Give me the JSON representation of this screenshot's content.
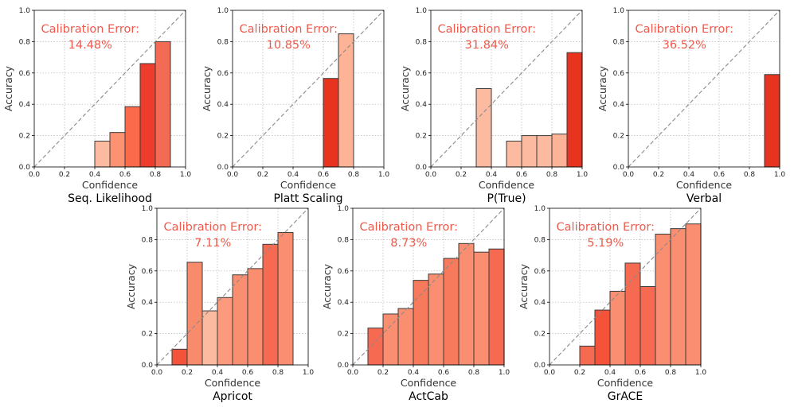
{
  "chart_data": [
    {
      "type": "bar",
      "name": "Seq. Likelihood",
      "xlabel": "Confidence",
      "ylabel": "Accuracy",
      "xlim": [
        0,
        1
      ],
      "ylim": [
        0,
        1
      ],
      "xticks": [
        "0.0",
        "0.2",
        "0.4",
        "0.6",
        "0.8",
        "1.0"
      ],
      "yticks": [
        "0.0",
        "0.2",
        "0.4",
        "0.6",
        "0.8",
        "1.0"
      ],
      "grid": true,
      "diagonal": true,
      "annotation_label": "Calibration Error:",
      "annotation_value": "14.48%",
      "bars": [
        {
          "x0": 0.4,
          "x1": 0.5,
          "value": 0.165,
          "color": "#fcbba1"
        },
        {
          "x0": 0.5,
          "x1": 0.6,
          "value": 0.22,
          "color": "#fc9272"
        },
        {
          "x0": 0.6,
          "x1": 0.7,
          "value": 0.385,
          "color": "#fb6a4a"
        },
        {
          "x0": 0.7,
          "x1": 0.8,
          "value": 0.66,
          "color": "#ef3b2c"
        },
        {
          "x0": 0.8,
          "x1": 0.9,
          "value": 0.8,
          "color": "#f36b55"
        }
      ]
    },
    {
      "type": "bar",
      "name": "Platt Scaling",
      "xlabel": "Confidence",
      "ylabel": "Accuracy",
      "xlim": [
        0,
        1
      ],
      "ylim": [
        0,
        1
      ],
      "xticks": [
        "0.0",
        "0.2",
        "0.4",
        "0.6",
        "0.8",
        "1.0"
      ],
      "yticks": [
        "0.0",
        "0.2",
        "0.4",
        "0.6",
        "0.8",
        "1.0"
      ],
      "grid": true,
      "diagonal": true,
      "annotation_label": "Calibration Error:",
      "annotation_value": "10.85%",
      "bars": [
        {
          "x0": 0.6,
          "x1": 0.7,
          "value": 0.565,
          "color": "#e8331f"
        },
        {
          "x0": 0.7,
          "x1": 0.8,
          "value": 0.85,
          "color": "#fcb396"
        }
      ]
    },
    {
      "type": "bar",
      "name": "P(True)",
      "xlabel": "Confidence",
      "ylabel": "Accuracy",
      "xlim": [
        0,
        1
      ],
      "ylim": [
        0,
        1
      ],
      "xticks": [
        "0.0",
        "0.2",
        "0.4",
        "0.6",
        "0.8",
        "1.0"
      ],
      "yticks": [
        "0.0",
        "0.2",
        "0.4",
        "0.6",
        "0.8",
        "1.0"
      ],
      "grid": true,
      "diagonal": true,
      "annotation_label": "Calibration Error:",
      "annotation_value": "31.84%",
      "bars": [
        {
          "x0": 0.3,
          "x1": 0.4,
          "value": 0.5,
          "color": "#fcbba1"
        },
        {
          "x0": 0.5,
          "x1": 0.6,
          "value": 0.165,
          "color": "#fcbba1"
        },
        {
          "x0": 0.6,
          "x1": 0.7,
          "value": 0.2,
          "color": "#fcbba1"
        },
        {
          "x0": 0.7,
          "x1": 0.8,
          "value": 0.2,
          "color": "#fcbba1"
        },
        {
          "x0": 0.8,
          "x1": 0.9,
          "value": 0.21,
          "color": "#fcb396"
        },
        {
          "x0": 0.9,
          "x1": 1.0,
          "value": 0.73,
          "color": "#e8331f"
        }
      ]
    },
    {
      "type": "bar",
      "name": "Verbal",
      "xlabel": "Confidence",
      "ylabel": "Accuracy",
      "xlim": [
        0,
        1
      ],
      "ylim": [
        0,
        1
      ],
      "xticks": [
        "0.0",
        "0.2",
        "0.4",
        "0.6",
        "0.8",
        "1.0"
      ],
      "yticks": [
        "0.0",
        "0.2",
        "0.4",
        "0.6",
        "0.8",
        "1.0"
      ],
      "grid": true,
      "diagonal": true,
      "annotation_label": "Calibration Error:",
      "annotation_value": "36.52%",
      "bars": [
        {
          "x0": 0.9,
          "x1": 1.0,
          "value": 0.59,
          "color": "#e8331f"
        }
      ]
    },
    {
      "type": "bar",
      "name": "Apricot",
      "xlabel": "Confidence",
      "ylabel": "Accuracy",
      "xlim": [
        0,
        1
      ],
      "ylim": [
        0,
        1
      ],
      "xticks": [
        "0.0",
        "0.2",
        "0.4",
        "0.6",
        "0.8",
        "1.0"
      ],
      "yticks": [
        "0.0",
        "0.2",
        "0.4",
        "0.6",
        "0.8",
        "1.0"
      ],
      "grid": true,
      "diagonal": true,
      "annotation_label": "Calibration Error:",
      "annotation_value": "7.11%",
      "bars": [
        {
          "x0": 0.1,
          "x1": 0.2,
          "value": 0.1,
          "color": "#f5523a"
        },
        {
          "x0": 0.2,
          "x1": 0.3,
          "value": 0.655,
          "color": "#f88b6b"
        },
        {
          "x0": 0.3,
          "x1": 0.4,
          "value": 0.345,
          "color": "#fcbba1"
        },
        {
          "x0": 0.4,
          "x1": 0.5,
          "value": 0.43,
          "color": "#fb9a7c"
        },
        {
          "x0": 0.5,
          "x1": 0.6,
          "value": 0.575,
          "color": "#f98f70"
        },
        {
          "x0": 0.6,
          "x1": 0.7,
          "value": 0.615,
          "color": "#f98f70"
        },
        {
          "x0": 0.7,
          "x1": 0.8,
          "value": 0.77,
          "color": "#f66a52"
        },
        {
          "x0": 0.8,
          "x1": 0.9,
          "value": 0.845,
          "color": "#f98f70"
        }
      ]
    },
    {
      "type": "bar",
      "name": "ActCab",
      "xlabel": "Confidence",
      "ylabel": "Accuracy",
      "xlim": [
        0,
        1
      ],
      "ylim": [
        0,
        1
      ],
      "xticks": [
        "0.0",
        "0.2",
        "0.4",
        "0.6",
        "0.8",
        "1.0"
      ],
      "yticks": [
        "0.0",
        "0.2",
        "0.4",
        "0.6",
        "0.8",
        "1.0"
      ],
      "grid": true,
      "diagonal": true,
      "annotation_label": "Calibration Error:",
      "annotation_value": "8.73%",
      "bars": [
        {
          "x0": 0.1,
          "x1": 0.2,
          "value": 0.235,
          "color": "#f66a52"
        },
        {
          "x0": 0.2,
          "x1": 0.3,
          "value": 0.325,
          "color": "#f98f70"
        },
        {
          "x0": 0.3,
          "x1": 0.4,
          "value": 0.36,
          "color": "#f98f70"
        },
        {
          "x0": 0.4,
          "x1": 0.5,
          "value": 0.54,
          "color": "#f77a5c"
        },
        {
          "x0": 0.5,
          "x1": 0.6,
          "value": 0.58,
          "color": "#f98f70"
        },
        {
          "x0": 0.6,
          "x1": 0.7,
          "value": 0.68,
          "color": "#f77a5c"
        },
        {
          "x0": 0.7,
          "x1": 0.8,
          "value": 0.775,
          "color": "#f98f70"
        },
        {
          "x0": 0.8,
          "x1": 0.9,
          "value": 0.72,
          "color": "#f98f70"
        },
        {
          "x0": 0.9,
          "x1": 1.0,
          "value": 0.74,
          "color": "#f66a52"
        }
      ]
    },
    {
      "type": "bar",
      "name": "GrACE",
      "xlabel": "Confidence",
      "ylabel": "Accuracy",
      "xlim": [
        0,
        1
      ],
      "ylim": [
        0,
        1
      ],
      "xticks": [
        "0.0",
        "0.2",
        "0.4",
        "0.6",
        "0.8",
        "1.0"
      ],
      "yticks": [
        "0.0",
        "0.2",
        "0.4",
        "0.6",
        "0.8",
        "1.0"
      ],
      "grid": true,
      "diagonal": true,
      "annotation_label": "Calibration Error:",
      "annotation_value": "5.19%",
      "bars": [
        {
          "x0": 0.2,
          "x1": 0.3,
          "value": 0.12,
          "color": "#f66a52"
        },
        {
          "x0": 0.3,
          "x1": 0.4,
          "value": 0.35,
          "color": "#f5523a"
        },
        {
          "x0": 0.4,
          "x1": 0.5,
          "value": 0.47,
          "color": "#f98f70"
        },
        {
          "x0": 0.5,
          "x1": 0.6,
          "value": 0.65,
          "color": "#f66a52"
        },
        {
          "x0": 0.6,
          "x1": 0.7,
          "value": 0.5,
          "color": "#f66a52"
        },
        {
          "x0": 0.7,
          "x1": 0.8,
          "value": 0.835,
          "color": "#f98f70"
        },
        {
          "x0": 0.8,
          "x1": 0.9,
          "value": 0.87,
          "color": "#f98f70"
        },
        {
          "x0": 0.9,
          "x1": 1.0,
          "value": 0.9,
          "color": "#f98f70"
        }
      ]
    }
  ]
}
